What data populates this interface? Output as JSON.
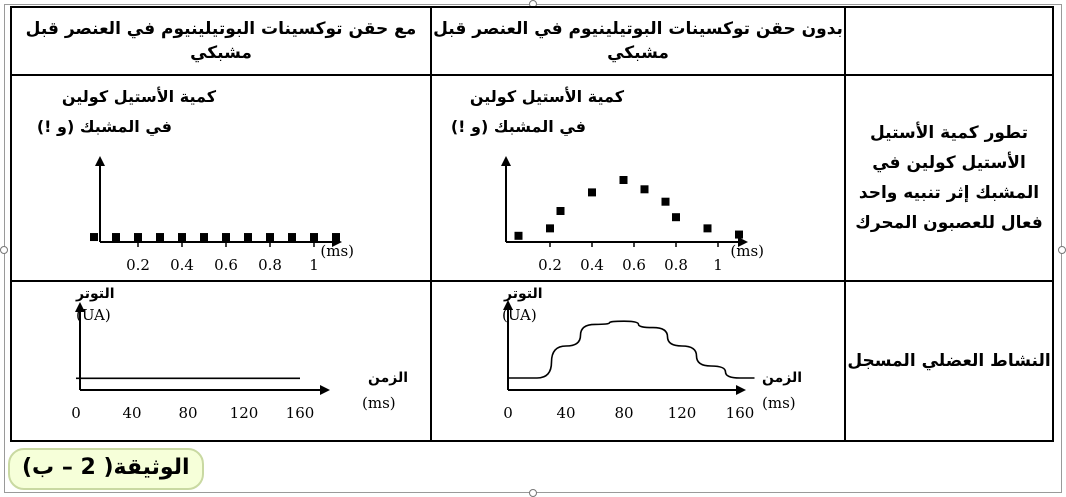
{
  "table": {
    "header": {
      "col_with": "مع حقن توكسينات البوتيلينيوم في العنصر قبل مشبكي",
      "col_without": "بدون حقن توكسينات البوتيلينيوم في العنصر قبل مشبكي"
    },
    "rows": {
      "evolution_label": "تطور كمية الأستيل الأستيل كولين في المشبك إثر تنبيه واحد فعال للعصبون المحرك",
      "muscle_label": "النشاط العضلي المسجل"
    }
  },
  "graphs": {
    "ach_ylabel_line1": "كمية الأستيل كولين",
    "ach_ylabel_line2": "في المشبك (و !)",
    "ach_xunit": "(ms)",
    "ach_ticks": [
      "0.2",
      "0.4",
      "0.6",
      "0.8",
      "1"
    ],
    "tension_label": "التوتر",
    "tension_unit": "(UA)",
    "time_label": "الزمن",
    "time_unit": "(ms)",
    "time_ticks": [
      "0",
      "40",
      "80",
      "120",
      "160"
    ]
  },
  "document_label": "الوثيقة( 2 – ب)",
  "chart_data": [
    {
      "type": "scatter",
      "condition": "without",
      "xlabel": "(ms)",
      "ylabel": "كمية الأستيل كولين في المشبك (و !)",
      "x": [
        0.05,
        0.2,
        0.25,
        0.4,
        0.55,
        0.65,
        0.75,
        0.8,
        0.95,
        1.1
      ],
      "y": [
        0.1,
        0.22,
        0.5,
        0.8,
        1.0,
        0.85,
        0.65,
        0.4,
        0.22,
        0.12
      ],
      "xlim": [
        0,
        1.2
      ]
    },
    {
      "type": "scatter",
      "condition": "with",
      "xlabel": "(ms)",
      "ylabel": "كمية الأستيل كولين في المشبك (و !)",
      "x": [
        0.0,
        0.1,
        0.2,
        0.3,
        0.4,
        0.5,
        0.6,
        0.7,
        0.8,
        0.9,
        1.0,
        1.1
      ],
      "y": [
        0.08,
        0.08,
        0.08,
        0.08,
        0.08,
        0.08,
        0.08,
        0.08,
        0.08,
        0.08,
        0.08,
        0.08
      ],
      "xlim": [
        0,
        1.2
      ]
    },
    {
      "type": "line",
      "condition": "without",
      "xlabel": "الزمن (ms)",
      "ylabel": "التوتر (UA)",
      "x": [
        0,
        20,
        40,
        60,
        80,
        100,
        120,
        140,
        160,
        170
      ],
      "y": [
        0.15,
        0.15,
        0.55,
        0.82,
        0.86,
        0.78,
        0.55,
        0.3,
        0.15,
        0.15
      ],
      "xlim": [
        0,
        180
      ]
    },
    {
      "type": "line",
      "condition": "with",
      "xlabel": "الزمن (ms)",
      "ylabel": "التوتر (UA)",
      "x": [
        0,
        160
      ],
      "y": [
        0.15,
        0.15
      ],
      "xlim": [
        0,
        180
      ]
    }
  ]
}
